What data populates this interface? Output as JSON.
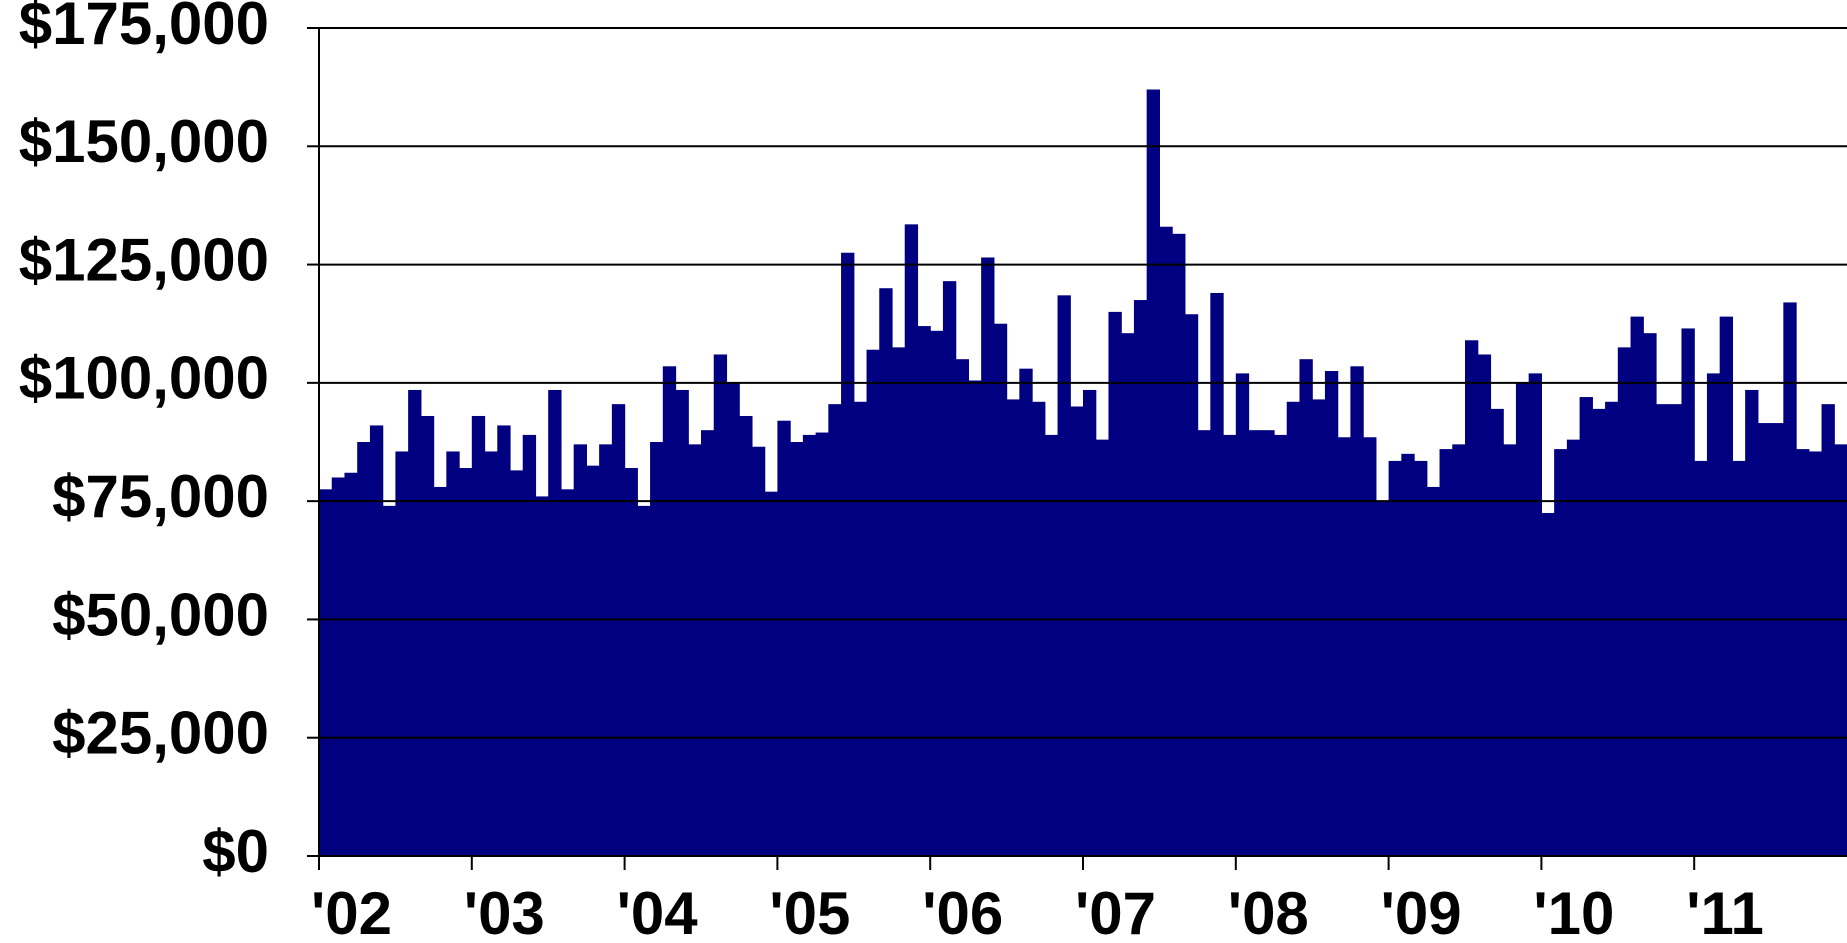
{
  "chart_data": {
    "type": "bar",
    "color": "#000080",
    "grid": true,
    "ylim": [
      0,
      175000
    ],
    "yticks": [
      {
        "value": 0,
        "label": "$0"
      },
      {
        "value": 25000,
        "label": "$25,000"
      },
      {
        "value": 50000,
        "label": "$50,000"
      },
      {
        "value": 75000,
        "label": "$75,000"
      },
      {
        "value": 100000,
        "label": "$100,000"
      },
      {
        "value": 125000,
        "label": "$125,000"
      },
      {
        "value": 150000,
        "label": "$150,000"
      },
      {
        "value": 175000,
        "label": "$175,000"
      }
    ],
    "categories": [
      "'02",
      null,
      null,
      null,
      null,
      null,
      null,
      null,
      null,
      null,
      null,
      null,
      "'03",
      null,
      null,
      null,
      null,
      null,
      null,
      null,
      null,
      null,
      null,
      null,
      "'04",
      null,
      null,
      null,
      null,
      null,
      null,
      null,
      null,
      null,
      null,
      null,
      "'05",
      null,
      null,
      null,
      null,
      null,
      null,
      null,
      null,
      null,
      null,
      null,
      "'06",
      null,
      null,
      null,
      null,
      null,
      null,
      null,
      null,
      null,
      null,
      null,
      "'07",
      null,
      null,
      null,
      null,
      null,
      null,
      null,
      null,
      null,
      null,
      null,
      "'08",
      null,
      null,
      null,
      null,
      null,
      null,
      null,
      null,
      null,
      null,
      null,
      "'09",
      null,
      null,
      null,
      null,
      null,
      null,
      null,
      null,
      null,
      null,
      null,
      "'10",
      null,
      null,
      null,
      null,
      null,
      null,
      null,
      null,
      null,
      null,
      null,
      "'11",
      null,
      null,
      null,
      null,
      null,
      null,
      null,
      null,
      null,
      null,
      null
    ],
    "values": [
      77500,
      80000,
      81000,
      87500,
      91000,
      74000,
      85500,
      98500,
      93000,
      78000,
      85500,
      82000,
      93000,
      85500,
      91000,
      81500,
      89000,
      76000,
      98500,
      77500,
      87000,
      82500,
      87000,
      95500,
      82000,
      74000,
      87500,
      103500,
      98500,
      87000,
      90000,
      106000,
      100000,
      93000,
      86500,
      77000,
      92000,
      87500,
      89000,
      89500,
      95500,
      127500,
      96000,
      107000,
      120000,
      107500,
      133500,
      112000,
      111000,
      121500,
      105000,
      100500,
      126500,
      112500,
      96500,
      103000,
      96000,
      89000,
      118500,
      95000,
      98500,
      88000,
      115000,
      110500,
      117500,
      162000,
      133000,
      131500,
      114500,
      90000,
      119000,
      89000,
      102000,
      90000,
      90000,
      89000,
      96000,
      105000,
      96500,
      102500,
      88500,
      103500,
      88500,
      75000,
      83500,
      85000,
      83500,
      78000,
      86000,
      87000,
      109000,
      106000,
      94500,
      87000,
      100000,
      102000,
      72500,
      86000,
      88000,
      97000,
      94500,
      96000,
      107500,
      114000,
      110500,
      95500,
      95500,
      111500,
      83500,
      102000,
      114000,
      83500,
      98500,
      91500,
      91500,
      117000,
      86000,
      85500,
      95500,
      87000
    ]
  }
}
